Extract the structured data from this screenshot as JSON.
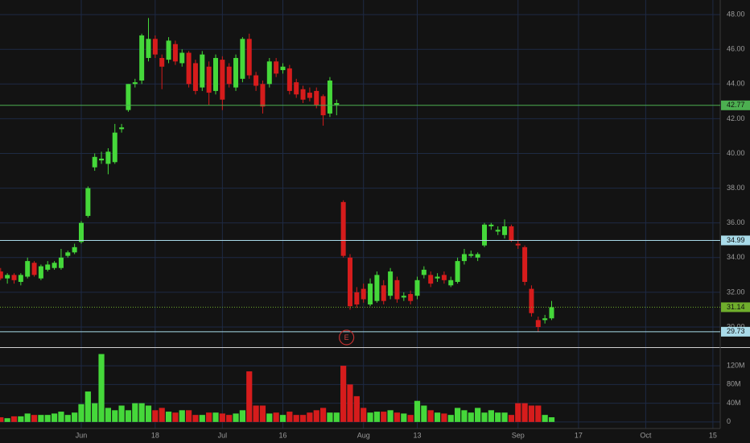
{
  "chart_data": {
    "type": "candlestick",
    "categories": [
      null,
      null,
      null,
      null,
      null,
      null,
      null,
      null,
      null,
      null,
      null,
      null,
      "Jun",
      null,
      null,
      null,
      null,
      null,
      null,
      null,
      null,
      null,
      null,
      "18",
      null,
      null,
      null,
      null,
      null,
      null,
      null,
      null,
      null,
      "Jul",
      null,
      null,
      null,
      null,
      null,
      null,
      null,
      null,
      "16",
      null,
      null,
      null,
      null,
      null,
      null,
      null,
      null,
      null,
      null,
      null,
      "Aug",
      null,
      null,
      null,
      null,
      null,
      null,
      null,
      "13",
      null,
      null,
      null,
      null,
      null,
      null,
      null,
      null,
      null,
      null,
      null,
      null,
      null,
      null,
      "Sep",
      null,
      null,
      null,
      null,
      null,
      null,
      null,
      null,
      "17",
      null,
      null,
      null,
      null,
      null,
      null,
      null,
      null,
      null,
      "Oct",
      null,
      null,
      null,
      null,
      null,
      null,
      null,
      null,
      null,
      "15"
    ],
    "open": [
      33.2,
      32.8,
      33.0,
      32.6,
      32.9,
      33.7,
      32.8,
      33.3,
      33.4,
      33.4,
      34.1,
      34.3,
      34.9,
      36.4,
      39.2,
      39.6,
      39.4,
      39.5,
      41.4,
      42.5,
      44.0,
      44.2,
      45.5,
      46.6,
      45.5,
      45.4,
      46.3,
      45.2,
      45.8,
      45.2,
      43.8,
      45.0,
      43.6,
      45.4,
      45.0,
      43.8,
      44.3,
      46.6,
      44.5,
      44.0,
      44.0,
      45.3,
      44.8,
      44.9,
      44.1,
      43.7,
      43.5,
      43.6,
      43.3,
      42.3,
      42.8,
      37.2,
      34.0,
      32.0,
      32.2,
      31.3,
      31.5,
      32.4,
      31.8,
      32.7,
      31.7,
      31.9,
      31.8,
      33.0,
      33.0,
      32.8,
      33.0,
      32.4,
      32.6,
      33.8,
      34.1,
      34.0,
      34.7,
      35.8,
      35.5,
      35.3,
      35.8,
      34.8,
      34.6,
      32.2,
      30.4,
      30.4,
      30.5,
      null,
      null,
      null,
      null,
      null,
      null,
      null,
      null,
      null,
      null,
      null,
      null,
      null,
      null,
      null,
      null,
      null,
      null,
      null,
      null,
      null,
      null,
      null,
      null
    ],
    "high": [
      33.4,
      33.1,
      33.1,
      33.1,
      34.0,
      33.8,
      33.6,
      33.8,
      33.8,
      34.5,
      34.4,
      34.8,
      36.1,
      38.1,
      40.0,
      40.1,
      40.3,
      41.7,
      41.7,
      44.0,
      44.3,
      46.9,
      47.8,
      46.8,
      45.7,
      46.7,
      46.5,
      46.0,
      45.9,
      45.4,
      45.9,
      45.3,
      45.7,
      45.6,
      45.2,
      45.7,
      46.7,
      46.9,
      44.7,
      44.2,
      45.5,
      45.5,
      45.2,
      45.1,
      44.3,
      43.9,
      43.8,
      43.8,
      43.4,
      44.4,
      43.1,
      37.3,
      34.2,
      32.3,
      32.5,
      32.8,
      33.2,
      32.7,
      33.4,
      32.9,
      32.0,
      32.1,
      32.9,
      33.5,
      33.2,
      33.1,
      33.2,
      32.9,
      34.0,
      34.5,
      34.4,
      34.3,
      36.0,
      36.0,
      35.8,
      36.2,
      35.9,
      35.0,
      34.7,
      32.4,
      30.6,
      30.7,
      31.5,
      null,
      null,
      null,
      null,
      null,
      null,
      null,
      null,
      null,
      null,
      null,
      null,
      null,
      null,
      null,
      null,
      null,
      null,
      null,
      null,
      null,
      null,
      null,
      null
    ],
    "low": [
      32.7,
      32.5,
      32.5,
      32.4,
      32.8,
      32.9,
      32.7,
      33.2,
      33.3,
      33.3,
      34.0,
      34.2,
      34.8,
      36.3,
      39.0,
      39.4,
      38.8,
      39.4,
      41.2,
      42.4,
      43.8,
      44.0,
      45.3,
      45.5,
      43.7,
      45.2,
      45.1,
      45.0,
      43.8,
      43.4,
      43.6,
      42.8,
      43.4,
      42.5,
      43.8,
      43.6,
      44.1,
      44.3,
      43.6,
      42.3,
      43.8,
      44.4,
      44.6,
      43.4,
      43.2,
      42.9,
      43.0,
      42.6,
      41.6,
      42.1,
      42.2,
      34.0,
      31.0,
      31.1,
      31.4,
      31.2,
      31.4,
      31.3,
      31.6,
      31.4,
      31.5,
      31.3,
      31.6,
      32.8,
      32.3,
      32.6,
      32.5,
      32.3,
      32.5,
      33.6,
      34.0,
      33.8,
      34.6,
      35.6,
      35.3,
      35.1,
      34.9,
      34.5,
      32.4,
      30.6,
      29.73,
      30.2,
      30.4,
      null,
      null,
      null,
      null,
      null,
      null,
      null,
      null,
      null,
      null,
      null,
      null,
      null,
      null,
      null,
      null,
      null,
      null,
      null,
      null,
      null,
      null,
      null,
      null
    ],
    "close": [
      32.8,
      33.0,
      32.7,
      33.0,
      33.8,
      33.0,
      33.5,
      33.6,
      33.7,
      34.0,
      34.3,
      34.6,
      36.0,
      38.0,
      39.8,
      39.7,
      40.1,
      41.2,
      41.5,
      44.0,
      44.1,
      46.8,
      46.6,
      45.7,
      45.0,
      46.5,
      45.3,
      45.8,
      44.0,
      43.6,
      45.7,
      43.5,
      45.5,
      43.1,
      44.0,
      45.5,
      46.6,
      44.5,
      43.9,
      42.7,
      45.3,
      44.6,
      45.0,
      43.6,
      43.4,
      43.1,
      43.2,
      42.8,
      42.2,
      44.2,
      42.9,
      34.1,
      31.2,
      31.3,
      31.6,
      32.5,
      33.0,
      31.5,
      33.2,
      31.6,
      31.8,
      31.5,
      32.7,
      33.3,
      32.5,
      32.9,
      32.7,
      32.7,
      33.8,
      34.2,
      34.2,
      34.2,
      35.9,
      35.9,
      35.6,
      35.8,
      35.0,
      34.7,
      32.6,
      30.8,
      30.0,
      30.5,
      31.14,
      null,
      null,
      null,
      null,
      null,
      null,
      null,
      null,
      null,
      null,
      null,
      null,
      null,
      null,
      null,
      null,
      null,
      null,
      null,
      null,
      null,
      null,
      null,
      null
    ],
    "volume": [
      10,
      8,
      12,
      12,
      18,
      15,
      15,
      15,
      18,
      22,
      15,
      20,
      38,
      65,
      40,
      145,
      30,
      25,
      35,
      25,
      40,
      40,
      35,
      25,
      30,
      22,
      20,
      25,
      25,
      15,
      15,
      20,
      20,
      18,
      15,
      18,
      25,
      108,
      35,
      35,
      18,
      20,
      15,
      22,
      15,
      15,
      20,
      25,
      30,
      20,
      20,
      120,
      80,
      55,
      30,
      20,
      22,
      22,
      25,
      20,
      18,
      15,
      45,
      35,
      25,
      20,
      18,
      15,
      30,
      25,
      20,
      30,
      20,
      25,
      20,
      20,
      15,
      40,
      40,
      35,
      35,
      15,
      10,
      null,
      null,
      null,
      null,
      null,
      null,
      null,
      null,
      null,
      null,
      null,
      null,
      null,
      null,
      null,
      null,
      null,
      null,
      null,
      null,
      null,
      null,
      null,
      null
    ],
    "up_color": "#45d83a",
    "down_color": "#d61c1c",
    "ylim": [
      28.84,
      48.84
    ],
    "yticks": [
      {
        "value": 30,
        "label": "30.00"
      },
      {
        "value": 32,
        "label": "32.00"
      },
      {
        "value": 34,
        "label": "34.00"
      },
      {
        "value": 36,
        "label": "36.00"
      },
      {
        "value": 38,
        "label": "38.00"
      },
      {
        "value": 40,
        "label": "40.00"
      },
      {
        "value": 42,
        "label": "42.00"
      },
      {
        "value": 44,
        "label": "44.00"
      },
      {
        "value": 46,
        "label": "46.00"
      },
      {
        "value": 48,
        "label": "48.00"
      }
    ],
    "volume_ylim": [
      -14,
      158
    ],
    "volume_yticks": [
      0,
      {
        "value": 40,
        "label": "40M"
      },
      {
        "value": 80,
        "label": "80M"
      },
      {
        "value": 120,
        "label": "120M"
      }
    ],
    "grid": true,
    "price_lines": [
      {
        "value": 42.77,
        "color": "#4caf50",
        "style": "solid"
      },
      {
        "value": 34.99,
        "color": "#a9dbe9",
        "style": "solid"
      },
      {
        "value": 31.14,
        "color": "#6fae2c",
        "style": "dotted"
      },
      {
        "value": 29.73,
        "color": "#a9dbe9",
        "style": "solid"
      }
    ],
    "annotations": [
      {
        "text": "E",
        "x": 51
      }
    ]
  }
}
